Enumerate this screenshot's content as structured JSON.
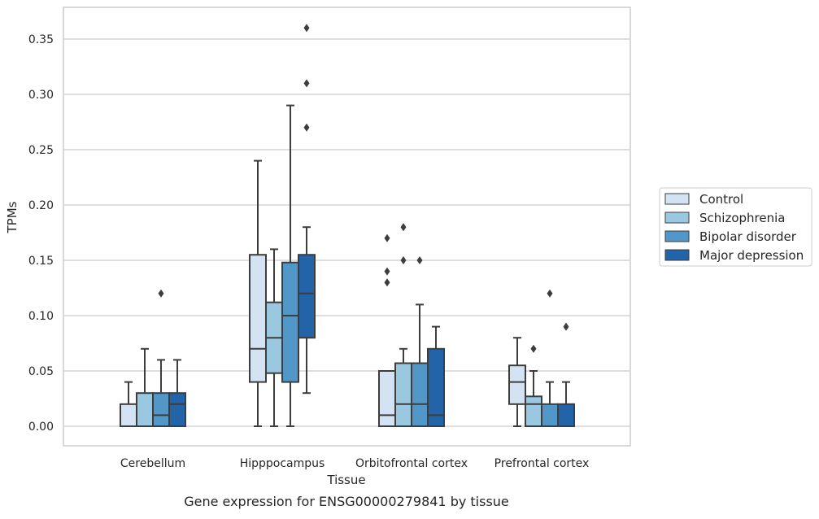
{
  "caption": "Gene expression for ENSG00000279841 by tissue",
  "chart_data": {
    "type": "box",
    "xlabel": "Tissue",
    "ylabel": "TPMs",
    "ylim": [
      -0.018,
      0.38
    ],
    "yticks": [
      "0.00",
      "0.05",
      "0.10",
      "0.15",
      "0.20",
      "0.25",
      "0.30",
      "0.35"
    ],
    "ytick_values": [
      0,
      0.05,
      0.1,
      0.15,
      0.2,
      0.25,
      0.3,
      0.35
    ],
    "grid": "horizontal",
    "legend_position": "right",
    "categories": [
      "Cerebellum",
      "Hipppocampus",
      "Orbitofrontal cortex",
      "Prefrontal cortex"
    ],
    "series": [
      {
        "name": "Control",
        "color": "#d3e3f3",
        "boxes": [
          {
            "min": 0,
            "q1": 0,
            "median": 0,
            "q3": 0.02,
            "max": 0.04,
            "outliers": []
          },
          {
            "min": 0,
            "q1": 0.04,
            "median": 0.07,
            "q3": 0.155,
            "max": 0.24,
            "outliers": []
          },
          {
            "min": 0,
            "q1": 0,
            "median": 0.01,
            "q3": 0.05,
            "max": 0.05,
            "outliers": [
              0.13,
              0.14,
              0.17
            ]
          },
          {
            "min": 0,
            "q1": 0.02,
            "median": 0.04,
            "q3": 0.055,
            "max": 0.08,
            "outliers": []
          }
        ]
      },
      {
        "name": "Schizophrenia",
        "color": "#9ac8e0",
        "boxes": [
          {
            "min": 0,
            "q1": 0,
            "median": 0,
            "q3": 0.03,
            "max": 0.07,
            "outliers": []
          },
          {
            "min": 0,
            "q1": 0.048,
            "median": 0.08,
            "q3": 0.112,
            "max": 0.16,
            "outliers": []
          },
          {
            "min": 0,
            "q1": 0,
            "median": 0.02,
            "q3": 0.057,
            "max": 0.07,
            "outliers": [
              0.15,
              0.18
            ]
          },
          {
            "min": 0,
            "q1": 0,
            "median": 0.02,
            "q3": 0.027,
            "max": 0.05,
            "outliers": [
              0.07
            ]
          }
        ]
      },
      {
        "name": "Bipolar disorder",
        "color": "#5198c9",
        "boxes": [
          {
            "min": 0,
            "q1": 0,
            "median": 0.01,
            "q3": 0.03,
            "max": 0.06,
            "outliers": [
              0.12
            ]
          },
          {
            "min": 0,
            "q1": 0.04,
            "median": 0.1,
            "q3": 0.148,
            "max": 0.29,
            "outliers": []
          },
          {
            "min": 0,
            "q1": 0,
            "median": 0.02,
            "q3": 0.057,
            "max": 0.11,
            "outliers": [
              0.15
            ]
          },
          {
            "min": 0,
            "q1": 0,
            "median": 0,
            "q3": 0.02,
            "max": 0.04,
            "outliers": [
              0.12
            ]
          }
        ]
      },
      {
        "name": "Major depression",
        "color": "#2364a8",
        "boxes": [
          {
            "min": 0,
            "q1": 0,
            "median": 0.02,
            "q3": 0.03,
            "max": 0.06,
            "outliers": []
          },
          {
            "min": 0.03,
            "q1": 0.08,
            "median": 0.12,
            "q3": 0.155,
            "max": 0.18,
            "outliers": [
              0.27,
              0.31,
              0.36
            ]
          },
          {
            "min": 0,
            "q1": 0,
            "median": 0.01,
            "q3": 0.07,
            "max": 0.09,
            "outliers": []
          },
          {
            "min": 0,
            "q1": 0,
            "median": 0,
            "q3": 0.02,
            "max": 0.04,
            "outliers": [
              0.09
            ]
          }
        ]
      }
    ]
  }
}
